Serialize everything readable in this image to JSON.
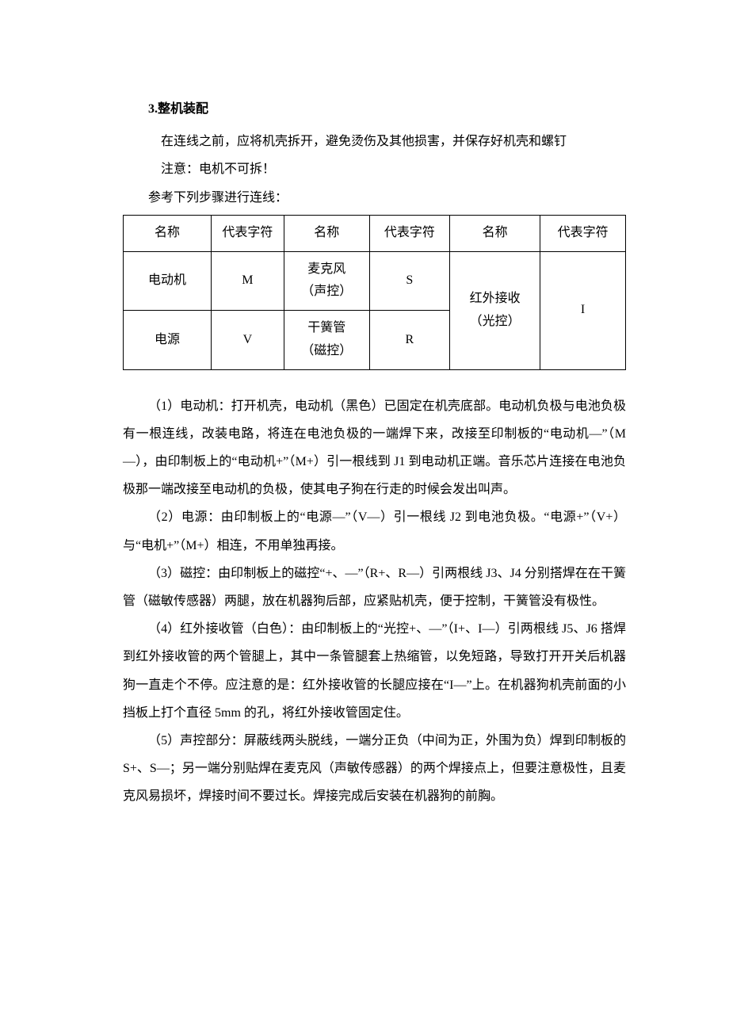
{
  "section_title": "3.整机装配",
  "intro": {
    "line1": "在连线之前，应将机壳拆开，避免烫伤及其他损害，并保存好机壳和螺钉",
    "line2": "注意：电机不可拆！",
    "line3": "参考下列步骤进行连线："
  },
  "table": {
    "header": {
      "c1": "名称",
      "c2": "代表字符",
      "c3": "名称",
      "c4": "代表字符",
      "c5": "名称",
      "c6": "代表字符"
    },
    "row1": {
      "c1": "电动机",
      "c2": "M",
      "c3_line1": "麦克风",
      "c3_line2": "（声控）",
      "c4": "S"
    },
    "row2": {
      "c1": "电源",
      "c2": "V",
      "c3_line1": "干簧管",
      "c3_line2": "（磁控）",
      "c4": "R"
    },
    "merged": {
      "c5_line1": "红外接收",
      "c5_line2": "（光控）",
      "c6": "I"
    }
  },
  "paragraphs": {
    "p1": "（1）电动机：打开机壳，电动机（黑色）已固定在机壳底部。电动机负极与电池负极有一根连线，改装电路，将连在电池负极的一端焊下来，改接至印制板的“电动机—”（M—），由印制板上的“电动机+”（M+）引一根线到 J1 到电动机正端。音乐芯片连接在电池负极那一端改接至电动机的负极，使其电子狗在行走的时候会发出叫声。",
    "p2": "（2）电源：由印制板上的“电源—”（V—）引一根线 J2 到电池负极。“电源+”（V+）与“电机+”（M+）相连，不用单独再接。",
    "p3": "（3）磁控：由印制板上的磁控“+、—”（R+、R—）引两根线 J3、J4 分别搭焊在在干簧管（磁敏传感器）两腿，放在机器狗后部，应紧贴机壳，便于控制，干簧管没有极性。",
    "p4": "（4）红外接收管（白色）：由印制板上的“光控+、—”（I+、I—）引两根线 J5、J6 搭焊到红外接收管的两个管腿上，其中一条管腿套上热缩管，以免短路，导致打开开关后机器狗一直走个不停。应注意的是：红外接收管的长腿应接在“I—”上。在机器狗机壳前面的小挡板上打个直径 5mm 的孔，将红外接收管固定住。",
    "p5": "（5）声控部分：屏蔽线两头脱线，一端分正负（中间为正，外围为负）焊到印制板的 S+、S—；另一端分别贴焊在麦克风（声敏传感器）的两个焊接点上，但要注意极性，且麦克风易损坏，焊接时间不要过长。焊接完成后安装在机器狗的前胸。"
  }
}
